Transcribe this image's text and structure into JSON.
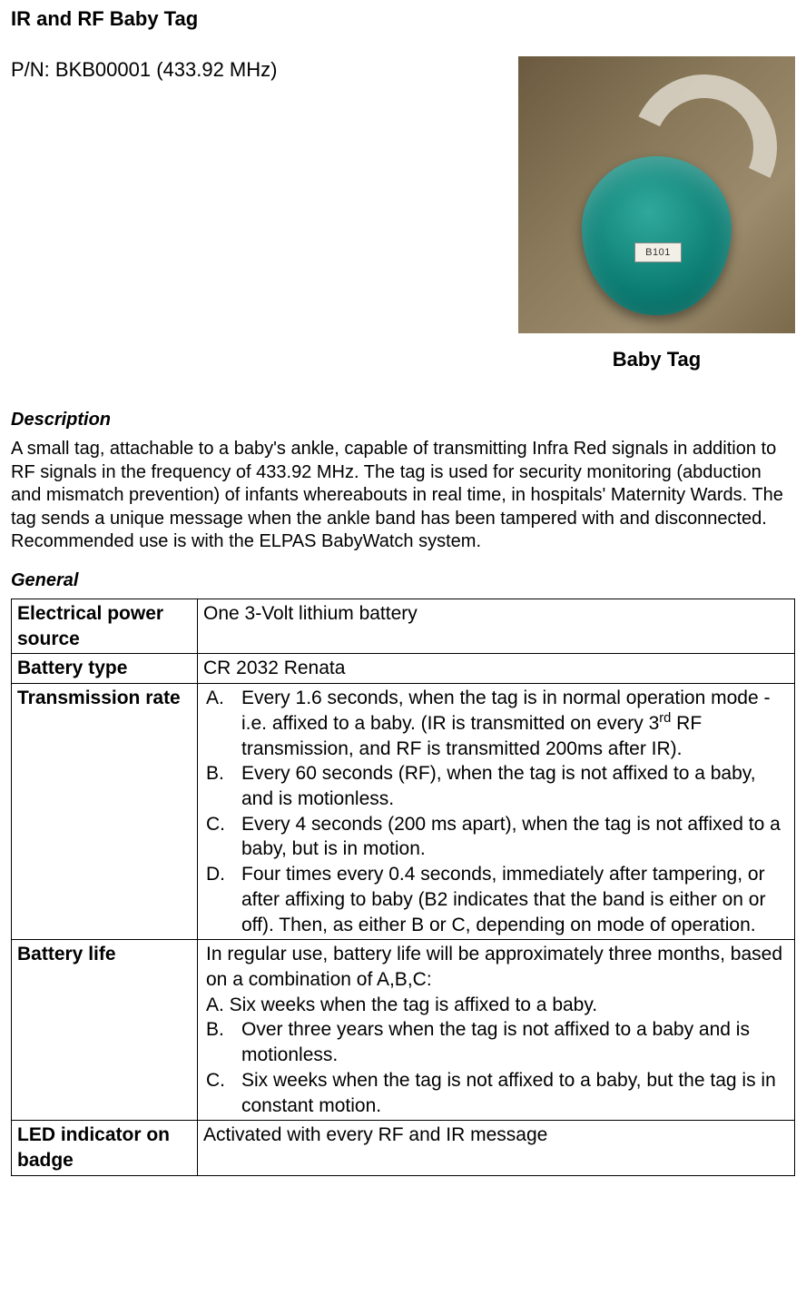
{
  "title": "IR and RF Baby Tag",
  "part_number_line": "P/N: BKB00001 (433.92 MHz)",
  "figure": {
    "tag_sticker_text": "B101",
    "caption": "Baby Tag"
  },
  "description": {
    "heading": "Description",
    "text": "A small tag, attachable to a baby's ankle, capable of transmitting Infra Red signals in addition to RF signals in the frequency of 433.92 MHz. The tag is used for security monitoring (abduction and mismatch prevention) of infants whereabouts in real time, in hospitals' Maternity Wards. The tag sends a unique message when the ankle band has been tampered with and disconnected.\nRecommended use is with the ELPAS BabyWatch system."
  },
  "general": {
    "heading": "General",
    "rows": {
      "power_source": {
        "label": "Electrical power source",
        "value": "One 3-Volt lithium battery"
      },
      "battery_type": {
        "label": "Battery type",
        "value": "CR 2032 Renata"
      },
      "transmission_rate": {
        "label": "Transmission rate",
        "items": {
          "a_marker": "A.",
          "a_pre": "Every 1.6 seconds, when the tag is in normal operation mode - i.e. affixed to a baby. (IR is transmitted on every 3",
          "a_sup": "rd",
          "a_post": " RF transmission, and RF is transmitted 200ms after IR).",
          "b_marker": "B.",
          "b": "Every 60 seconds (RF), when the tag is not affixed to a baby, and is motionless.",
          "c_marker": "C.",
          "c": "Every 4 seconds (200 ms apart), when the tag is not affixed to a baby, but is in motion.",
          "d_marker": "D.",
          "d": "Four times every 0.4 seconds, immediately after tampering, or after affixing to baby (B2 indicates that the band is either on or off). Then, as either B or C, depending on mode of operation."
        }
      },
      "battery_life": {
        "label": "Battery life",
        "intro": "In regular use, battery life will be approximately three months, based on a combination of A,B,C:",
        "a_line": "A. Six weeks when the tag is affixed to a baby.",
        "b_marker": "B.",
        "b": "Over three years when the tag is not affixed to a baby and is motionless.",
        "c_marker": "C.",
        "c": "Six weeks when the tag is not affixed to a baby, but the tag is in constant motion."
      },
      "led": {
        "label": "LED indicator on badge",
        "value": "Activated with every RF and IR message"
      }
    }
  }
}
